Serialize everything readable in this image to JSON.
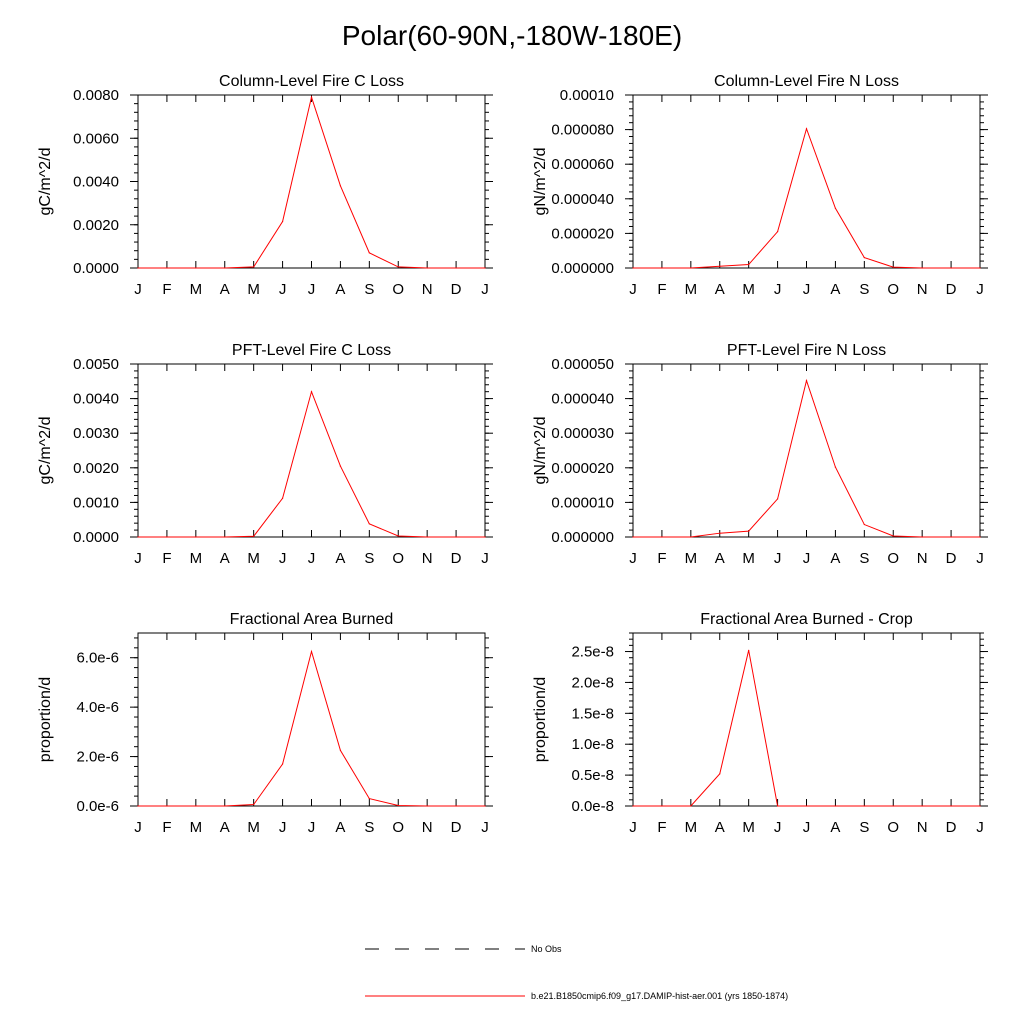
{
  "figure": {
    "title": "Polar(60-90N,-180W-180E)"
  },
  "legend": {
    "entries": [
      {
        "label": "No Obs",
        "style": "dashed",
        "color": "#000000"
      },
      {
        "label": "b.e21.B1850cmip6.f09_g17.DAMIP-hist-aer.001 (yrs 1850-1874)",
        "style": "solid",
        "color": "#ff0000"
      }
    ]
  },
  "chart_data": [
    {
      "type": "line",
      "title": "Column-Level Fire C Loss",
      "ylabel": "gC/m^2/d",
      "xlabel": "",
      "categories": [
        "J",
        "F",
        "M",
        "A",
        "M",
        "J",
        "J",
        "A",
        "S",
        "O",
        "N",
        "D",
        "J"
      ],
      "ylim": [
        0,
        0.008
      ],
      "yticks": [
        "0.0000",
        "0.0020",
        "0.0040",
        "0.0060",
        "0.0080"
      ],
      "series": [
        {
          "color": "#ff0000",
          "values": [
            0.0,
            0.0,
            0.0,
            0.0,
            5e-05,
            0.00215,
            0.0079,
            0.0038,
            0.0007,
            5e-05,
            0.0,
            0.0,
            0.0
          ]
        }
      ]
    },
    {
      "type": "line",
      "title": "Column-Level Fire N Loss",
      "ylabel": "gN/m^2/d",
      "xlabel": "",
      "categories": [
        "J",
        "F",
        "M",
        "A",
        "M",
        "J",
        "J",
        "A",
        "S",
        "O",
        "N",
        "D",
        "J"
      ],
      "ylim": [
        0,
        0.0001
      ],
      "yticks": [
        "0.000000",
        "0.000020",
        "0.000040",
        "0.000060",
        "0.000080",
        "0.00010"
      ],
      "series": [
        {
          "color": "#ff0000",
          "values": [
            0.0,
            0.0,
            0.0,
            1e-06,
            2e-06,
            2.1e-05,
            8.05e-05,
            3.45e-05,
            6e-06,
            5e-07,
            0.0,
            0.0,
            0.0
          ]
        }
      ]
    },
    {
      "type": "line",
      "title": "PFT-Level Fire C Loss",
      "ylabel": "gC/m^2/d",
      "xlabel": "",
      "categories": [
        "J",
        "F",
        "M",
        "A",
        "M",
        "J",
        "J",
        "A",
        "S",
        "O",
        "N",
        "D",
        "J"
      ],
      "ylim": [
        0,
        0.005
      ],
      "yticks": [
        "0.0000",
        "0.0010",
        "0.0020",
        "0.0030",
        "0.0040",
        "0.0050"
      ],
      "series": [
        {
          "color": "#ff0000",
          "values": [
            0.0,
            0.0,
            0.0,
            0.0,
            2e-05,
            0.00112,
            0.0042,
            0.00205,
            0.00038,
            3e-05,
            0.0,
            0.0,
            0.0
          ]
        }
      ]
    },
    {
      "type": "line",
      "title": "PFT-Level Fire N Loss",
      "ylabel": "gN/m^2/d",
      "xlabel": "",
      "categories": [
        "J",
        "F",
        "M",
        "A",
        "M",
        "J",
        "J",
        "A",
        "S",
        "O",
        "N",
        "D",
        "J"
      ],
      "ylim": [
        0,
        5e-05
      ],
      "yticks": [
        "0.000000",
        "0.000010",
        "0.000020",
        "0.000030",
        "0.000040",
        "0.000050"
      ],
      "series": [
        {
          "color": "#ff0000",
          "values": [
            0.0,
            0.0,
            0.0,
            1.1e-06,
            1.7e-06,
            1.1e-05,
            4.52e-05,
            2.02e-05,
            3.6e-06,
            3e-07,
            0.0,
            0.0,
            0.0
          ]
        }
      ]
    },
    {
      "type": "line",
      "title": "Fractional Area Burned",
      "ylabel": "proportion/d",
      "xlabel": "",
      "categories": [
        "J",
        "F",
        "M",
        "A",
        "M",
        "J",
        "J",
        "A",
        "S",
        "O",
        "N",
        "D",
        "J"
      ],
      "ylim": [
        0,
        7e-06
      ],
      "yticks": [
        "0.0e-6",
        "2.0e-6",
        "4.0e-6",
        "6.0e-6"
      ],
      "series": [
        {
          "color": "#ff0000",
          "values": [
            0.0,
            0.0,
            0.0,
            0.0,
            6e-08,
            1.7e-06,
            6.25e-06,
            2.25e-06,
            3e-07,
            2e-08,
            0.0,
            0.0,
            0.0
          ]
        }
      ]
    },
    {
      "type": "line",
      "title": "Fractional Area Burned - Crop",
      "ylabel": "proportion/d",
      "xlabel": "",
      "categories": [
        "J",
        "F",
        "M",
        "A",
        "M",
        "J",
        "J",
        "A",
        "S",
        "O",
        "N",
        "D",
        "J"
      ],
      "ylim": [
        0,
        2.8e-08
      ],
      "yticks": [
        "0.0e-8",
        "0.5e-8",
        "1.0e-8",
        "1.5e-8",
        "2.0e-8",
        "2.5e-8"
      ],
      "series": [
        {
          "color": "#ff0000",
          "values": [
            0.0,
            0.0,
            0.0,
            5.2e-09,
            2.52e-08,
            0.0,
            0.0,
            0.0,
            0.0,
            0.0,
            0.0,
            0.0,
            0.0
          ]
        }
      ]
    }
  ]
}
